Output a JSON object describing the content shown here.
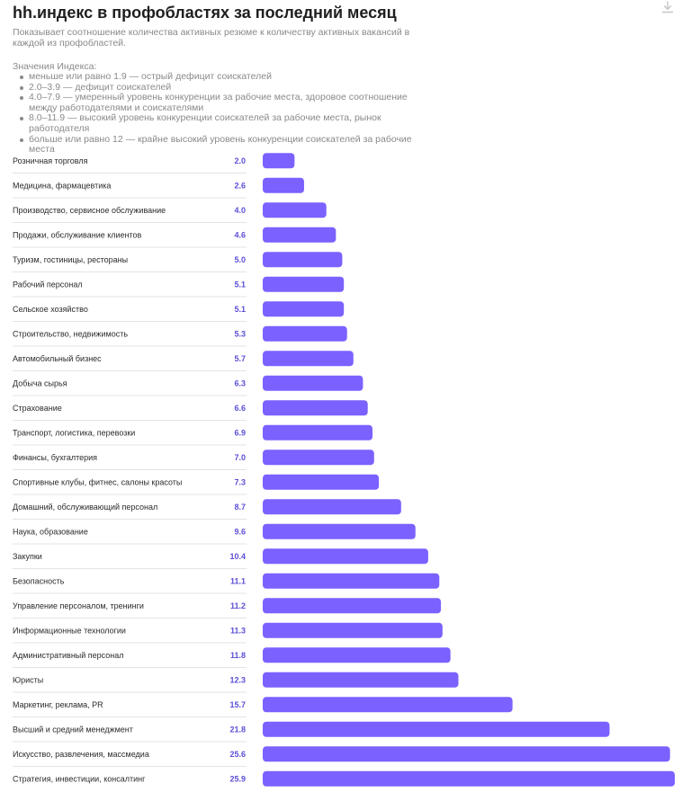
{
  "header": {
    "title": "hh.индекс в профобластях за последний месяц",
    "subtitle": "Показывает соотношение количества активных резюме к количеству активных вакансий в каждой из профобластей.",
    "download_icon": "download-icon"
  },
  "legend": {
    "heading": "Значения Индекса:",
    "items": [
      "меньше или равно 1.9 — острый дефицит соискателей",
      "2.0–3.9 — дефицит соискателей",
      "4.0–7.9 — умеренный уровень конкуренции за рабочие места, здоровое соотношение между работодателями и соискателями",
      "8.0–11.9 — высокий уровень конкуренции соискателей за рабочие места, рынок работодателя",
      "больше или равно 12 — крайне высокий уровень конкуренции соискателей за рабочие места"
    ]
  },
  "colors": {
    "bar": "#7b61ff",
    "value_text": "#5b4fd6"
  },
  "chart_data": {
    "type": "bar",
    "orientation": "horizontal",
    "categories": [
      "Розничная торговля",
      "Медицина, фармацевтика",
      "Производство, сервисное обслуживание",
      "Продажи, обслуживание клиентов",
      "Туризм, гостиницы, рестораны",
      "Рабочий персонал",
      "Сельское хозяйство",
      "Строительство, недвижимость",
      "Автомобильный бизнес",
      "Добыча сырья",
      "Страхование",
      "Транспорт, логистика, перевозки",
      "Финансы, бухгалтерия",
      "Спортивные клубы, фитнес, салоны красоты",
      "Домашний, обслуживающий персонал",
      "Наука, образование",
      "Закупки",
      "Безопасность",
      "Управление персоналом, тренинги",
      "Информационные технологии",
      "Административный персонал",
      "Юристы",
      "Маркетинг, реклама, PR",
      "Высший и средний менеджмент",
      "Искусство, развлечения, массмедиа",
      "Стратегия, инвестиции, консалтинг"
    ],
    "values": [
      2.0,
      2.6,
      4.0,
      4.6,
      5.0,
      5.1,
      5.1,
      5.3,
      5.7,
      6.3,
      6.6,
      6.9,
      7.0,
      7.3,
      8.7,
      9.6,
      10.4,
      11.1,
      11.2,
      11.3,
      11.8,
      12.3,
      15.7,
      21.8,
      25.6,
      25.9
    ],
    "value_labels": [
      "2.0",
      "2.6",
      "4.0",
      "4.6",
      "5.0",
      "5.1",
      "5.1",
      "5.3",
      "5.7",
      "6.3",
      "6.6",
      "6.9",
      "7.0",
      "7.3",
      "8.7",
      "9.6",
      "10.4",
      "11.1",
      "11.2",
      "11.3",
      "11.8",
      "12.3",
      "15.7",
      "21.8",
      "25.6",
      "25.9"
    ],
    "xlim": [
      0,
      25.9
    ],
    "grid": false,
    "legend": "none"
  }
}
